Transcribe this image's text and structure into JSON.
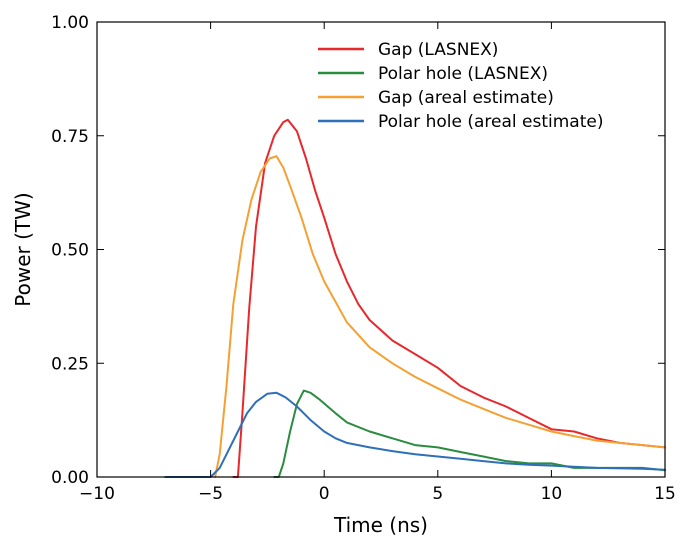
{
  "chart_data": {
    "type": "line",
    "xlabel": "Time (ns)",
    "ylabel": "Power (TW)",
    "xlim": [
      -10,
      15
    ],
    "ylim": [
      0,
      1.0
    ],
    "x_ticks": [
      -10,
      -5,
      0,
      5,
      10,
      15
    ],
    "x_tick_labels": [
      "−10",
      "−5",
      "0",
      "5",
      "10",
      "15"
    ],
    "y_ticks": [
      0,
      0.25,
      0.5,
      0.75,
      1.0
    ],
    "y_tick_labels": [
      "0.00",
      "0.25",
      "0.50",
      "0.75",
      "1.00"
    ],
    "grid": false,
    "legend_position": "top-right",
    "series": [
      {
        "name": "Gap (LASNEX)",
        "color": "#e8282b",
        "points": [
          [
            -4.0,
            0.0
          ],
          [
            -3.8,
            0.0
          ],
          [
            -3.6,
            0.14
          ],
          [
            -3.3,
            0.37
          ],
          [
            -3.0,
            0.55
          ],
          [
            -2.6,
            0.69
          ],
          [
            -2.2,
            0.75
          ],
          [
            -1.8,
            0.78
          ],
          [
            -1.6,
            0.785
          ],
          [
            -1.2,
            0.76
          ],
          [
            -0.8,
            0.7
          ],
          [
            -0.4,
            0.63
          ],
          [
            0.0,
            0.57
          ],
          [
            0.5,
            0.49
          ],
          [
            1.0,
            0.43
          ],
          [
            1.5,
            0.38
          ],
          [
            2.0,
            0.345
          ],
          [
            3.0,
            0.3
          ],
          [
            4.0,
            0.27
          ],
          [
            5.0,
            0.24
          ],
          [
            6.0,
            0.2
          ],
          [
            7.0,
            0.175
          ],
          [
            8.0,
            0.155
          ],
          [
            9.0,
            0.13
          ],
          [
            10.0,
            0.105
          ],
          [
            11.0,
            0.1
          ],
          [
            12.0,
            0.085
          ],
          [
            13.0,
            0.075
          ],
          [
            14.0,
            0.07
          ],
          [
            15.0,
            0.065
          ]
        ]
      },
      {
        "name": "Polar hole (LASNEX)",
        "color": "#2a8c3f",
        "points": [
          [
            -2.2,
            0.0
          ],
          [
            -2.0,
            0.0
          ],
          [
            -1.8,
            0.03
          ],
          [
            -1.5,
            0.1
          ],
          [
            -1.2,
            0.16
          ],
          [
            -0.9,
            0.19
          ],
          [
            -0.6,
            0.185
          ],
          [
            -0.2,
            0.17
          ],
          [
            0.5,
            0.14
          ],
          [
            1.0,
            0.12
          ],
          [
            2.0,
            0.1
          ],
          [
            3.0,
            0.085
          ],
          [
            4.0,
            0.07
          ],
          [
            5.0,
            0.065
          ],
          [
            6.0,
            0.055
          ],
          [
            7.0,
            0.045
          ],
          [
            8.0,
            0.035
          ],
          [
            9.0,
            0.03
          ],
          [
            10.0,
            0.03
          ],
          [
            11.0,
            0.02
          ],
          [
            12.0,
            0.02
          ],
          [
            13.0,
            0.02
          ],
          [
            14.0,
            0.02
          ],
          [
            15.0,
            0.015
          ]
        ]
      },
      {
        "name": "Gap (areal estimate)",
        "color": "#f5a033",
        "points": [
          [
            -4.8,
            0.0
          ],
          [
            -4.6,
            0.05
          ],
          [
            -4.3,
            0.2
          ],
          [
            -4.0,
            0.38
          ],
          [
            -3.6,
            0.52
          ],
          [
            -3.2,
            0.61
          ],
          [
            -2.8,
            0.67
          ],
          [
            -2.4,
            0.7
          ],
          [
            -2.1,
            0.705
          ],
          [
            -1.8,
            0.68
          ],
          [
            -1.5,
            0.64
          ],
          [
            -1.0,
            0.57
          ],
          [
            -0.5,
            0.49
          ],
          [
            0.0,
            0.43
          ],
          [
            1.0,
            0.34
          ],
          [
            2.0,
            0.285
          ],
          [
            3.0,
            0.25
          ],
          [
            4.0,
            0.22
          ],
          [
            5.0,
            0.195
          ],
          [
            6.0,
            0.17
          ],
          [
            7.0,
            0.15
          ],
          [
            8.0,
            0.13
          ],
          [
            9.0,
            0.115
          ],
          [
            10.0,
            0.1
          ],
          [
            11.0,
            0.09
          ],
          [
            12.0,
            0.08
          ],
          [
            13.0,
            0.075
          ],
          [
            14.0,
            0.07
          ],
          [
            15.0,
            0.065
          ]
        ]
      },
      {
        "name": "Polar hole (areal estimate)",
        "color": "#2e6fba",
        "points": [
          [
            -7.0,
            0.0
          ],
          [
            -5.0,
            0.0
          ],
          [
            -4.6,
            0.02
          ],
          [
            -4.2,
            0.06
          ],
          [
            -3.8,
            0.1
          ],
          [
            -3.4,
            0.14
          ],
          [
            -3.0,
            0.165
          ],
          [
            -2.5,
            0.183
          ],
          [
            -2.1,
            0.185
          ],
          [
            -1.7,
            0.175
          ],
          [
            -1.2,
            0.155
          ],
          [
            -0.6,
            0.125
          ],
          [
            0.0,
            0.1
          ],
          [
            0.5,
            0.085
          ],
          [
            1.0,
            0.075
          ],
          [
            2.0,
            0.065
          ],
          [
            3.0,
            0.057
          ],
          [
            4.0,
            0.05
          ],
          [
            5.0,
            0.045
          ],
          [
            6.0,
            0.04
          ],
          [
            7.0,
            0.035
          ],
          [
            8.0,
            0.03
          ],
          [
            9.0,
            0.027
          ],
          [
            10.0,
            0.025
          ],
          [
            12.0,
            0.02
          ],
          [
            14.0,
            0.018
          ],
          [
            15.0,
            0.016
          ]
        ]
      }
    ]
  }
}
